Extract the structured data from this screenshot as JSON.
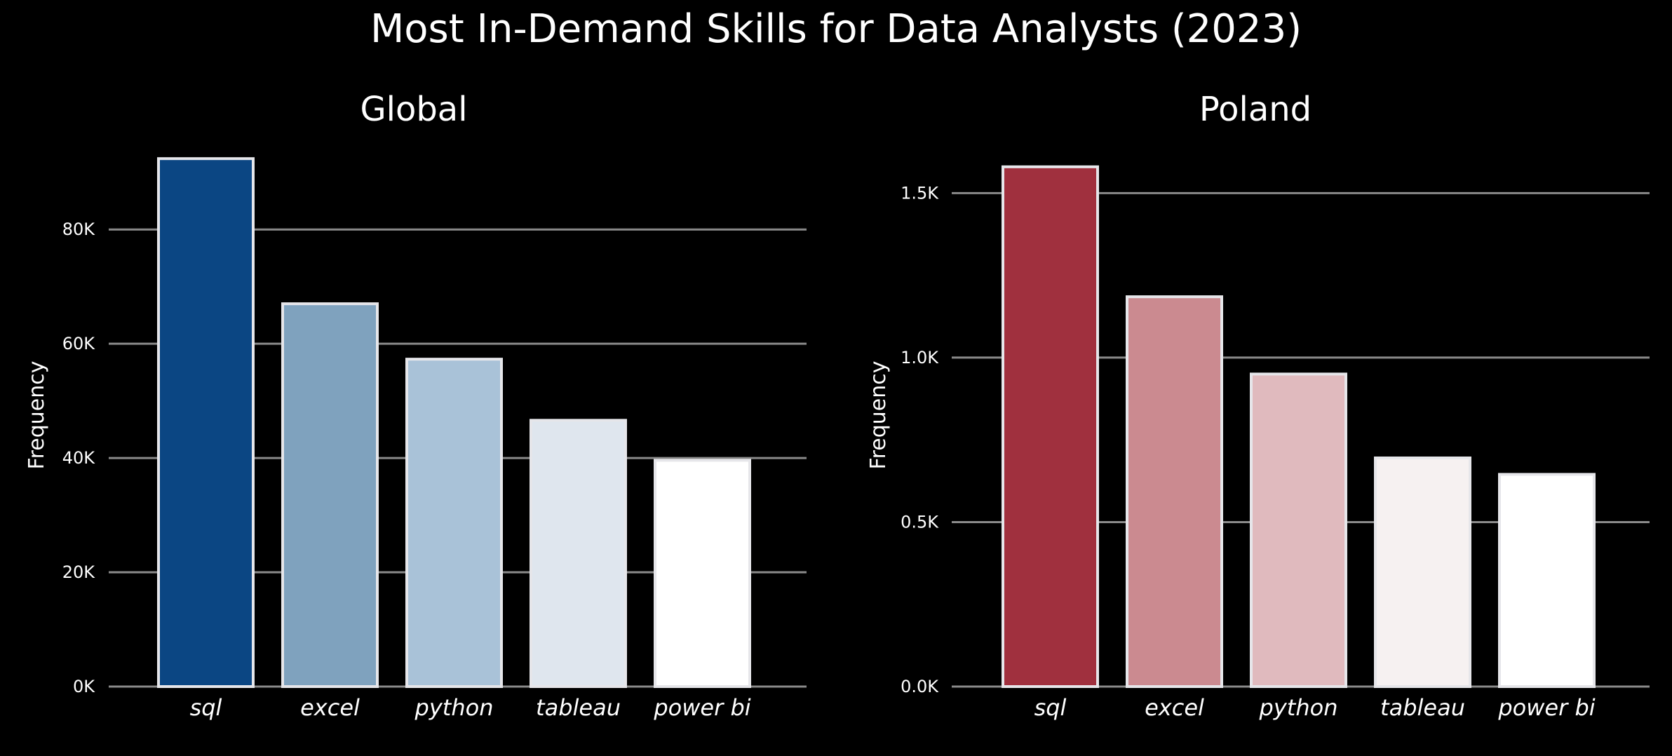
{
  "title": "Most In-Demand Skills for Data Analysts (2023)",
  "colors": {
    "background": "#000000",
    "grid": "#8a8a8a",
    "bar_edge": "#e6e6ea",
    "text": "#ffffff"
  },
  "chart_data": [
    {
      "type": "bar",
      "title": "Global",
      "ylabel": "Frequency",
      "categories": [
        "sql",
        "excel",
        "python",
        "tableau",
        "power bi"
      ],
      "values": [
        92400,
        67000,
        57300,
        46600,
        39600
      ],
      "ylim": [
        0,
        95000
      ],
      "yticks": [
        0,
        20000,
        40000,
        60000,
        80000
      ],
      "ytick_labels": [
        "0K",
        "20K",
        "40K",
        "60K",
        "80K"
      ],
      "grid": true,
      "colors": [
        "#0b4683",
        "#7fa2be",
        "#a9c2d8",
        "#dfe6ee",
        "#ffffff"
      ]
    },
    {
      "type": "bar",
      "title": "Poland",
      "ylabel": "Frequency",
      "categories": [
        "sql",
        "excel",
        "python",
        "tableau",
        "power bi"
      ],
      "values": [
        1580,
        1185,
        950,
        695,
        645
      ],
      "ylim": [
        0,
        1650
      ],
      "yticks": [
        0,
        500,
        1000,
        1500
      ],
      "ytick_labels": [
        "0.0K",
        "0.5K",
        "1.0K",
        "1.5K"
      ],
      "grid": true,
      "colors": [
        "#a0303e",
        "#cb8a90",
        "#e0babe",
        "#f6f1f1",
        "#ffffff"
      ]
    }
  ]
}
